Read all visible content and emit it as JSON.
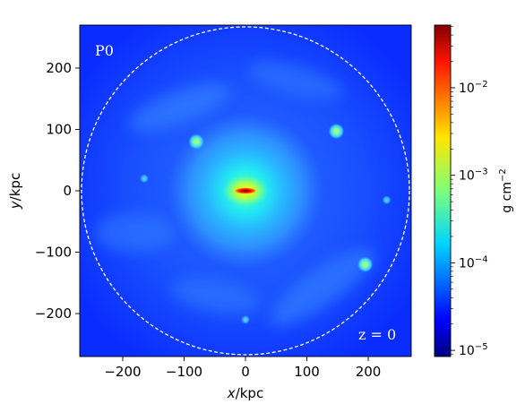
{
  "chart_data": {
    "type": "heatmap",
    "panel_label": "P0",
    "redshift_label": "z = 0",
    "xlabel_var": "x",
    "xlabel_unit": "/kpc",
    "ylabel_var": "y",
    "ylabel_unit": "/kpc",
    "xlim": [
      -270,
      270
    ],
    "ylim": [
      -270,
      270
    ],
    "xticks": [
      -200,
      -100,
      0,
      100,
      200
    ],
    "yticks": [
      -200,
      -100,
      0,
      100,
      200
    ],
    "xtick_labels": [
      "−200",
      "−100",
      "0",
      "100",
      "200"
    ],
    "ytick_labels": [
      "−200",
      "−100",
      "0",
      "100",
      "200"
    ],
    "circle_radius_kpc": 267,
    "colorbar": {
      "label": "g cm",
      "label_exponent": "−2",
      "scale": "log",
      "range": [
        8.5e-06,
        0.052
      ],
      "ticks": [
        1e-05,
        0.0001,
        0.001,
        0.01
      ],
      "tick_base": [
        "10",
        "10",
        "10",
        "10"
      ],
      "tick_exponents": [
        "−5",
        "−4",
        "−3",
        "−2"
      ],
      "colormap": "jet"
    },
    "features": [
      {
        "x": 0,
        "y": 0,
        "kind": "central-disk",
        "value": 0.03
      },
      {
        "x": 148,
        "y": 97,
        "kind": "satellite",
        "value": 0.0008
      },
      {
        "x": -80,
        "y": 80,
        "kind": "satellite",
        "value": 0.0012
      },
      {
        "x": 195,
        "y": -120,
        "kind": "satellite",
        "value": 0.0015
      },
      {
        "x": 230,
        "y": -15,
        "kind": "satellite",
        "value": 0.0004
      },
      {
        "x": -165,
        "y": 20,
        "kind": "satellite",
        "value": 0.0003
      },
      {
        "x": 0,
        "y": -210,
        "kind": "satellite",
        "value": 0.0003
      }
    ]
  }
}
